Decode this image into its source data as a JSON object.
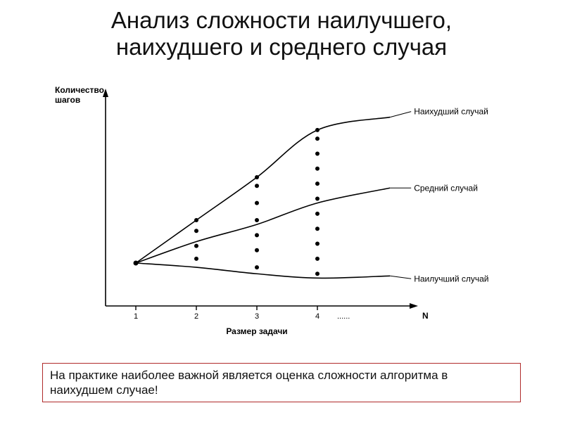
{
  "title_line1": "Анализ сложности наилучшего,",
  "title_line2": "наихудшего и среднего случая",
  "title_fontsize": 33,
  "chart": {
    "type": "line",
    "background_color": "#ffffff",
    "axis_color": "#000000",
    "line_color": "#000000",
    "point_color": "#000000",
    "line_width": 1.6,
    "point_radius": 3,
    "y_label_line1": "Количество",
    "y_label_line2": "шагов",
    "x_label": "Размер задачи",
    "x_end_label": "N",
    "axis_label_fontsize": 12,
    "tick_fontsize": 11,
    "curve_label_fontsize": 12,
    "x_ticks": [
      1,
      2,
      3,
      4
    ],
    "x_tick_dots": "......",
    "xlim": [
      0.5,
      5.5
    ],
    "ylim": [
      0,
      100
    ],
    "curves": {
      "worst": {
        "label": "Наихудший случай",
        "points": [
          [
            1,
            20
          ],
          [
            2,
            40
          ],
          [
            3,
            60
          ],
          [
            4,
            82
          ],
          [
            5.2,
            88
          ]
        ]
      },
      "average": {
        "label": "Средний случай",
        "points": [
          [
            1,
            20
          ],
          [
            2,
            30
          ],
          [
            3,
            38
          ],
          [
            4,
            48
          ],
          [
            5.2,
            55
          ]
        ]
      },
      "best": {
        "label": "Наилучший случай",
        "points": [
          [
            1,
            20
          ],
          [
            2,
            18
          ],
          [
            3,
            15
          ],
          [
            4,
            13
          ],
          [
            5.2,
            14
          ]
        ]
      }
    },
    "scatter_columns": {
      "2": [
        22,
        28,
        35,
        40
      ],
      "3": [
        18,
        26,
        33,
        40,
        48,
        56,
        60
      ],
      "4": [
        15,
        22,
        29,
        36,
        43,
        50,
        57,
        64,
        71,
        78,
        82
      ]
    },
    "start_point": [
      1,
      20
    ]
  },
  "footer_text": "На практике наиболее важной является оценка сложности алгоритма в наихудшем случае!",
  "footer_border_color": "#b02a2a",
  "footer_fontsize": 17
}
